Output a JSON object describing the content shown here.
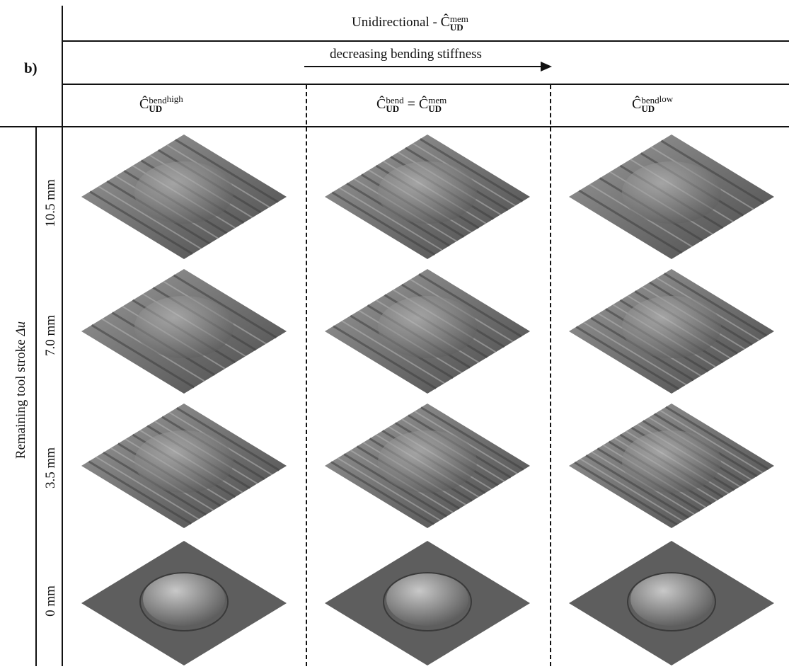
{
  "panel_label": "b)",
  "header": {
    "group_title_prefix": "Unidirectional - ",
    "group_symbol": "Ĉ",
    "group_sup": "mem",
    "group_sub": "UD",
    "arrow_label": "decreasing bending stiffness"
  },
  "columns": [
    {
      "symbol": "Ĉ",
      "sup": "bend",
      "sub": "UD",
      "suffix_sup": "high"
    },
    {
      "symbol": "Ĉ",
      "sup": "bend",
      "sub": "UD",
      "eq": " = ",
      "rhs_symbol": "Ĉ",
      "rhs_sup": "mem",
      "rhs_sub": "UD"
    },
    {
      "symbol": "Ĉ",
      "sup": "bend",
      "sub": "UD",
      "suffix_sup": "low"
    }
  ],
  "row_axis_title_text": "Remaining tool stroke ",
  "row_axis_title_var": "Δu",
  "rows": [
    {
      "label": "10.5 mm"
    },
    {
      "label": "7.0 mm"
    },
    {
      "label": "3.5 mm"
    },
    {
      "label": "0 mm"
    }
  ],
  "colors": {
    "line": "#111111",
    "surface_light": "#9a9a9a",
    "surface_dark": "#4a4a4a",
    "dome_light": "#c8c8c8",
    "dome_dark": "#5a5a5a"
  }
}
